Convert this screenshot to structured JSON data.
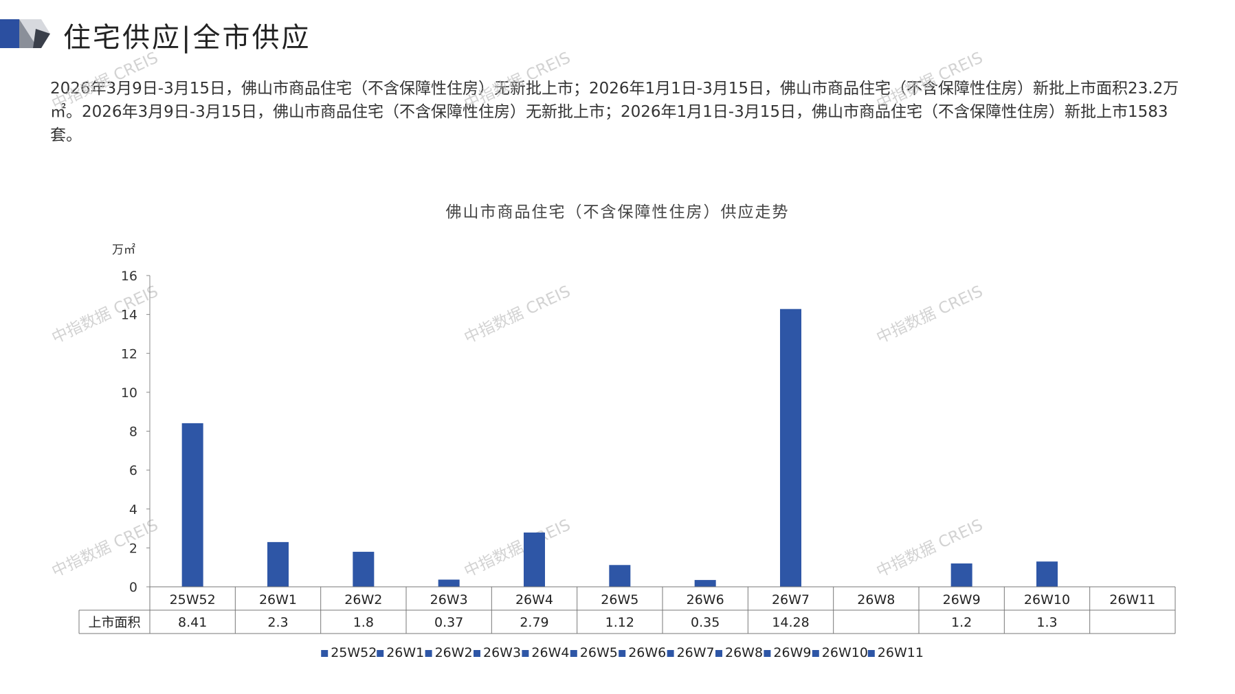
{
  "header": {
    "title": "住宅供应|全市供应",
    "accent_color": "#2b4fa0"
  },
  "summary": {
    "text": "2026年3月9日-3月15日，佛山市商品住宅（不含保障性住房）无新批上市；2026年1月1日-3月15日，佛山市商品住宅（不含保障性住房）新批上市面积23.2万㎡。2026年3月9日-3月15日，佛山市商品住宅（不含保障性住房）无新批上市；2026年1月1日-3月15日，佛山市商品住宅（不含保障性住房）新批上市1583套。"
  },
  "watermark": "中指数据 CREIS",
  "chart_data": {
    "type": "bar",
    "title": "佛山市商品住宅（不含保障性住房）供应走势",
    "unit_label": "万㎡",
    "ylim": [
      0,
      16
    ],
    "yticks": [
      0,
      2,
      4,
      6,
      8,
      10,
      12,
      14,
      16
    ],
    "categories": [
      "25W52",
      "26W1",
      "26W2",
      "26W3",
      "26W4",
      "26W5",
      "26W6",
      "26W7",
      "26W8",
      "26W9",
      "26W10",
      "26W11"
    ],
    "series": [
      {
        "name": "上市面积",
        "color": "#2e56a6",
        "values": [
          8.41,
          2.3,
          1.8,
          0.37,
          2.79,
          1.12,
          0.35,
          14.28,
          null,
          1.2,
          1.3,
          null
        ],
        "labels": [
          "8.41",
          "2.3",
          "1.8",
          "0.37",
          "2.79",
          "1.12",
          "0.35",
          "14.28",
          "",
          "1.2",
          "1.3",
          ""
        ]
      }
    ],
    "legend": {
      "position": "bottom",
      "entries": [
        "25W52",
        "26W1",
        "26W2",
        "26W3",
        "26W4",
        "26W5",
        "26W6",
        "26W7",
        "26W8",
        "26W9",
        "26W10",
        "26W11"
      ]
    },
    "grid": false
  }
}
